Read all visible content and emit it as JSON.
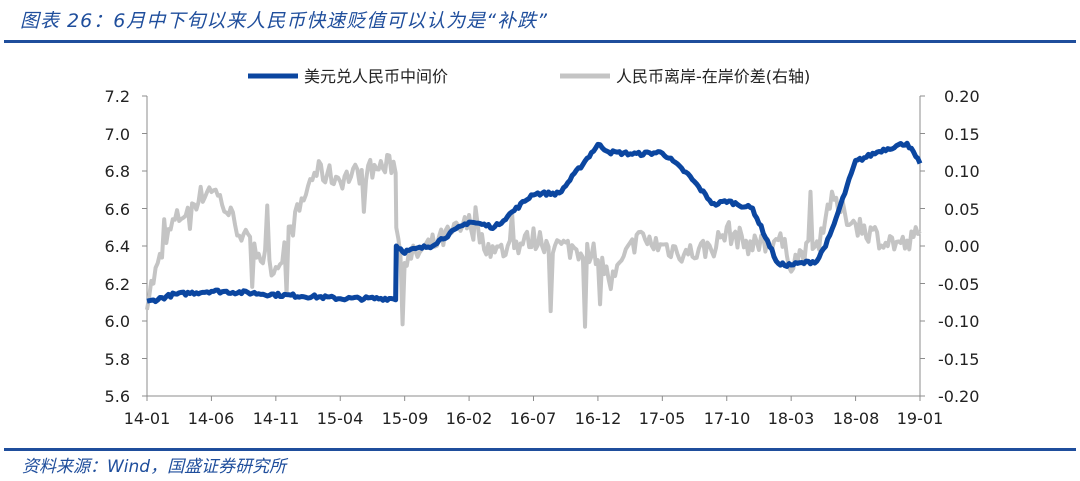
{
  "header": {
    "title": "图表 26：6月中下旬以来人民币快速贬值可以认为是“补跌”"
  },
  "footer": {
    "source": "资料来源：Wind，国盛证券研究所"
  },
  "colors": {
    "brand_blue": "#1f4e9c",
    "series_primary": "#0b46a0",
    "series_secondary": "#c4c4c4",
    "axis": "#8c8c8c"
  },
  "legend": {
    "items": [
      {
        "label": "美元兑人民币中间价",
        "color": "#0b46a0"
      },
      {
        "label": "人民币离岸-在岸价差(右轴)",
        "color": "#c4c4c4"
      }
    ]
  },
  "axes": {
    "left_ticks": [
      "7.2",
      "7.0",
      "6.8",
      "6.6",
      "6.4",
      "6.2",
      "6.0",
      "5.8",
      "5.6"
    ],
    "right_ticks": [
      "0.20",
      "0.15",
      "0.10",
      "0.05",
      "0.00",
      "-0.05",
      "-0.10",
      "-0.15",
      "-0.20"
    ],
    "x_ticks": [
      "14-01",
      "14-06",
      "14-11",
      "15-04",
      "15-09",
      "16-02",
      "16-07",
      "16-12",
      "17-05",
      "17-10",
      "18-03",
      "18-08",
      "19-01"
    ]
  },
  "chart_data": {
    "type": "line",
    "title": "6月中下旬以来人民币快速贬值可以认为是“补跌”",
    "xlabel": "",
    "ylabel_left": "美元兑人民币中间价",
    "ylabel_right": "人民币离岸-在岸价差",
    "ylim_left": [
      5.6,
      7.2
    ],
    "ylim_right": [
      -0.2,
      0.2
    ],
    "grid": false,
    "legend_position": "top",
    "x": [
      "14-01",
      "14-03",
      "14-06",
      "14-09",
      "14-11",
      "15-02",
      "15-04",
      "15-06",
      "15-08-10",
      "15-08-11",
      "15-09",
      "15-11",
      "16-02",
      "16-04",
      "16-07",
      "16-09",
      "16-12",
      "17-01",
      "17-03",
      "17-05",
      "17-07",
      "17-09",
      "17-10",
      "17-12",
      "18-02",
      "18-03",
      "18-05",
      "18-06",
      "18-08",
      "18-10",
      "18-12",
      "19-01"
    ],
    "series": [
      {
        "name": "美元兑人民币中间价",
        "axis": "left",
        "values": [
          6.1,
          6.14,
          6.16,
          6.15,
          6.14,
          6.13,
          6.12,
          6.12,
          6.12,
          6.4,
          6.37,
          6.4,
          6.53,
          6.5,
          6.68,
          6.68,
          6.94,
          6.9,
          6.89,
          6.9,
          6.78,
          6.62,
          6.64,
          6.6,
          6.3,
          6.3,
          6.32,
          6.45,
          6.85,
          6.91,
          6.95,
          6.84
        ]
      },
      {
        "name": "人民币离岸-在岸价差(右轴)",
        "axis": "right",
        "values": [
          -0.07,
          0.03,
          0.08,
          0.0,
          -0.03,
          0.1,
          0.09,
          0.1,
          0.11,
          0.02,
          -0.02,
          0.0,
          0.03,
          -0.01,
          0.01,
          0.0,
          -0.01,
          -0.05,
          0.01,
          0.0,
          -0.01,
          0.0,
          0.02,
          0.0,
          0.01,
          -0.02,
          0.0,
          0.06,
          0.03,
          0.01,
          0.0,
          0.02
        ]
      }
    ]
  }
}
